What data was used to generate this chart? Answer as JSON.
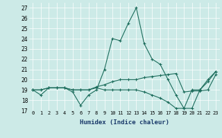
{
  "xlabel": "Humidex (Indice chaleur)",
  "ylabel": "",
  "bg_color": "#cceae7",
  "line_color": "#1a6b5a",
  "xlim": [
    -0.5,
    23.5
  ],
  "ylim": [
    17,
    27.5
  ],
  "yticks": [
    17,
    18,
    19,
    20,
    21,
    22,
    23,
    24,
    25,
    26,
    27
  ],
  "xticks": [
    0,
    1,
    2,
    3,
    4,
    5,
    6,
    7,
    8,
    9,
    10,
    11,
    12,
    13,
    14,
    15,
    16,
    17,
    18,
    19,
    20,
    21,
    22,
    23
  ],
  "series": [
    [
      19.0,
      18.5,
      19.2,
      19.2,
      19.2,
      18.8,
      17.5,
      18.5,
      19.0,
      21.0,
      24.0,
      23.8,
      25.5,
      27.0,
      23.5,
      22.0,
      21.5,
      20.0,
      18.5,
      17.2,
      19.0,
      19.0,
      19.8,
      20.8
    ],
    [
      19.0,
      19.0,
      19.2,
      19.2,
      19.2,
      19.0,
      19.0,
      19.0,
      19.3,
      19.5,
      19.8,
      20.0,
      20.0,
      20.0,
      20.2,
      20.3,
      20.4,
      20.5,
      20.6,
      18.8,
      18.9,
      18.9,
      19.0,
      20.5
    ],
    [
      19.0,
      19.0,
      19.2,
      19.2,
      19.2,
      19.0,
      19.0,
      19.0,
      19.2,
      19.0,
      19.0,
      19.0,
      19.0,
      19.0,
      18.8,
      18.5,
      18.2,
      17.8,
      17.2,
      17.2,
      17.2,
      19.0,
      20.0,
      20.8
    ]
  ]
}
